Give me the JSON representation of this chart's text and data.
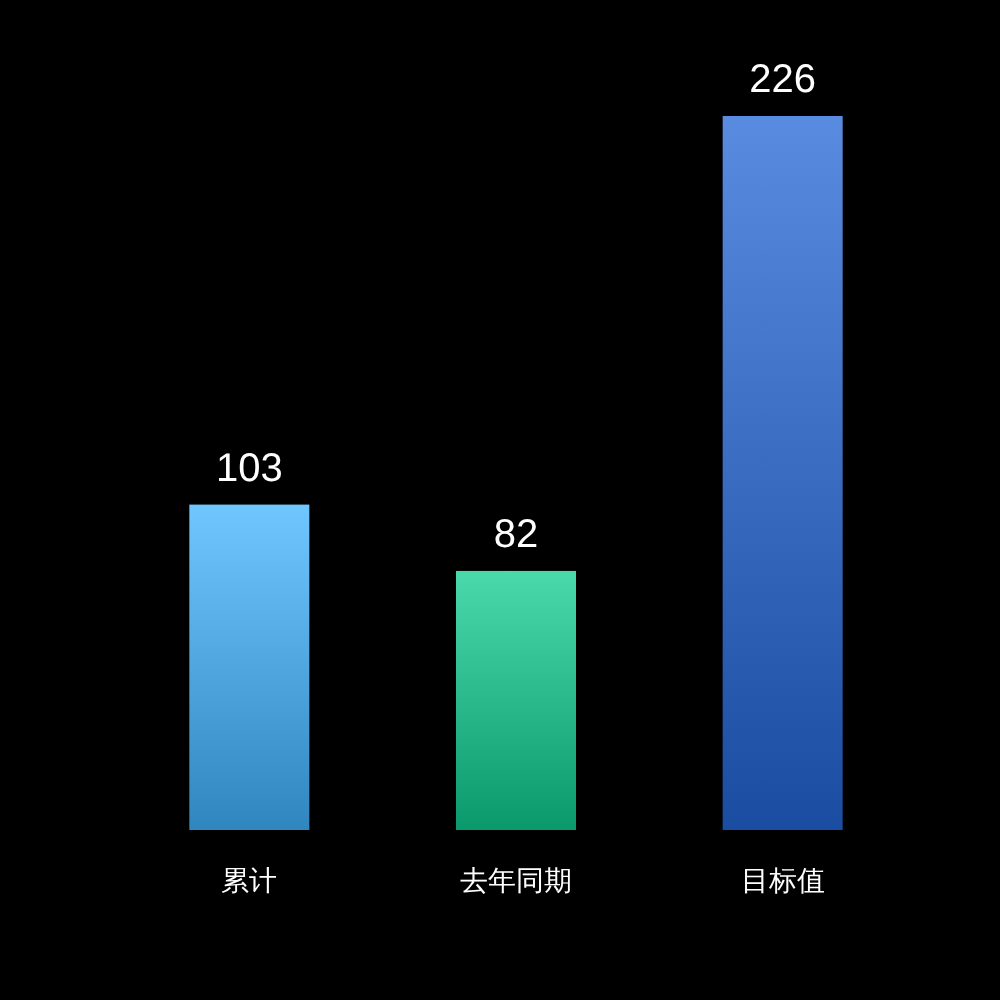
{
  "chart_data": {
    "type": "bar",
    "categories": [
      "累计",
      "去年同期",
      "目标值"
    ],
    "values": [
      103,
      82,
      226
    ],
    "colors": [
      "#40b4ff",
      "#0dcc8f",
      "#2266d6"
    ],
    "data_labels": true
  }
}
